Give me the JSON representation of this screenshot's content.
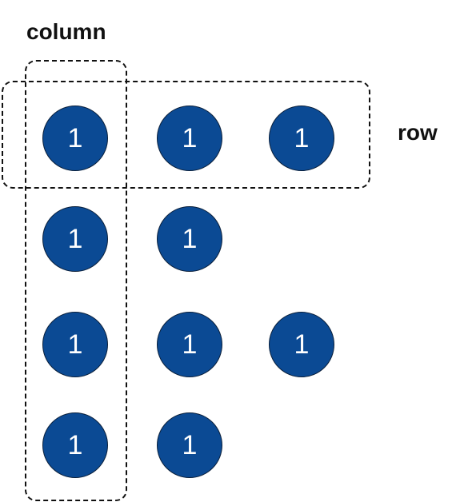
{
  "labels": {
    "column": "column",
    "row": "row"
  },
  "nodes": [
    [
      "1",
      "1",
      "1"
    ],
    [
      "1",
      "1"
    ],
    [
      "1",
      "1",
      "1"
    ],
    [
      "1",
      "1"
    ]
  ],
  "colors": {
    "node_fill": "#0b4a94",
    "node_text": "#ffffff",
    "outline": "#111111"
  }
}
